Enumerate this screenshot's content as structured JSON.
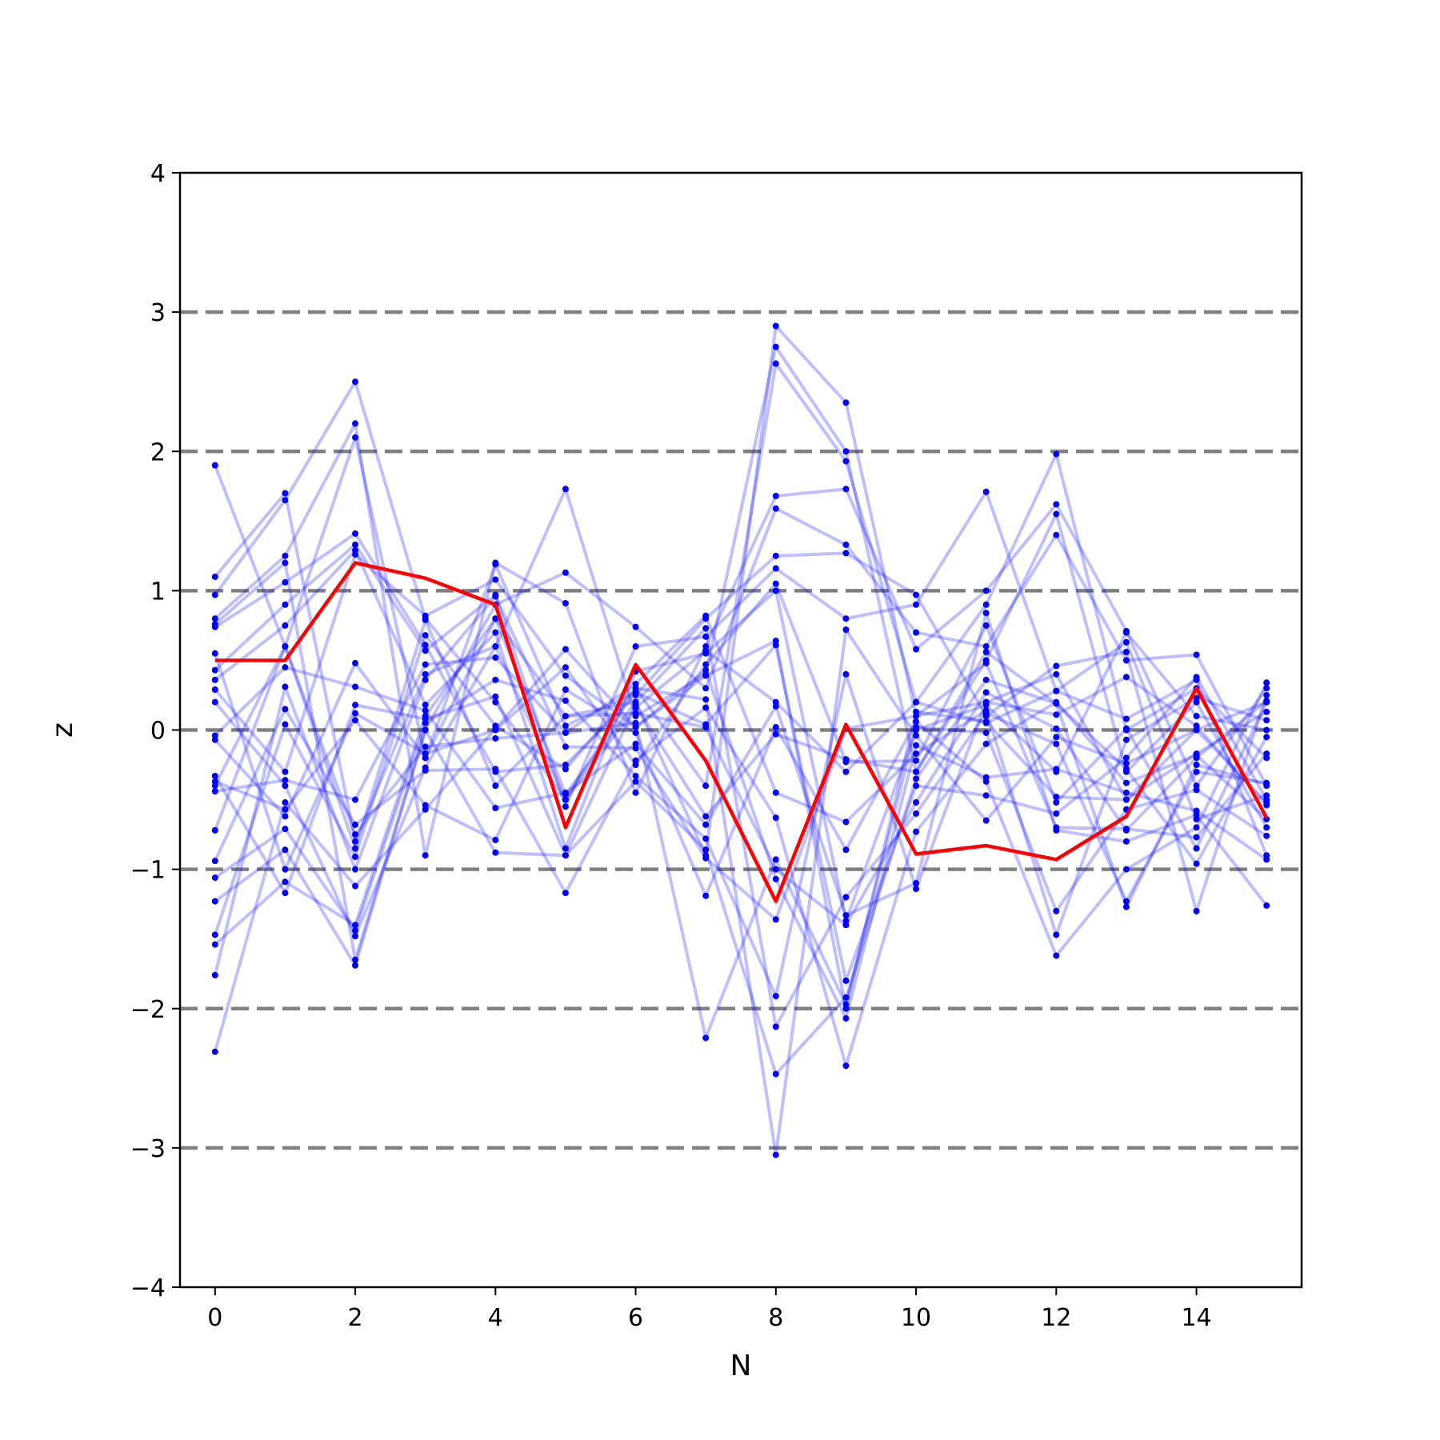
{
  "chart_data": {
    "type": "line",
    "xlabel": "N",
    "ylabel": "z",
    "xlim": [
      -0.5,
      15.5
    ],
    "ylim": [
      -4,
      4
    ],
    "x_ticks": [
      0,
      2,
      4,
      6,
      8,
      10,
      12,
      14
    ],
    "y_ticks": [
      -4,
      -3,
      -2,
      -1,
      0,
      1,
      2,
      3,
      4
    ],
    "y_tick_labels": [
      "−4",
      "−3",
      "−2",
      "−1",
      "0",
      "1",
      "2",
      "3",
      "4"
    ],
    "reference_lines": [
      -3,
      -2,
      -1,
      0,
      1,
      2,
      3
    ],
    "grid": false,
    "legend": "none",
    "colors": {
      "background_series": "#0000ff",
      "highlight_series": "#ff0000",
      "reference_line": "#808080"
    },
    "x": [
      0,
      1,
      2,
      3,
      4,
      5,
      6,
      7,
      8,
      9,
      10,
      11,
      12,
      13,
      14,
      15
    ],
    "highlight": [
      0.5,
      0.5,
      1.2,
      1.09,
      0.9,
      -0.7,
      0.47,
      -0.22,
      -1.23,
      0.04,
      -0.89,
      -0.83,
      -0.93,
      -0.62,
      0.3,
      -0.63
    ],
    "series": [
      {
        "values": [
          1.9,
          0.6,
          2.1,
          -0.2,
          0.8,
          0.1,
          0.2,
          -0.9,
          2.9,
          2.35,
          0.1,
          0.2,
          0.4,
          -0.5,
          0.0,
          0.2
        ]
      },
      {
        "values": [
          1.1,
          1.7,
          -0.8,
          0.4,
          0.6,
          1.73,
          0.1,
          0.4,
          2.75,
          2.0,
          -0.3,
          0.5,
          1.55,
          -0.3,
          0.2,
          -0.7
        ]
      },
      {
        "values": [
          0.97,
          1.65,
          2.5,
          0.8,
          0.2,
          -0.5,
          0.3,
          -0.4,
          2.63,
          1.93,
          0.2,
          0.9,
          1.98,
          0.0,
          0.3,
          -0.2
        ]
      },
      {
        "values": [
          0.8,
          1.25,
          2.2,
          -0.9,
          1.2,
          0.91,
          -0.45,
          0.6,
          1.68,
          1.73,
          0.58,
          1.0,
          1.62,
          0.71,
          -0.4,
          0.3
        ]
      },
      {
        "values": [
          0.76,
          1.2,
          -1.65,
          0.0,
          0.9,
          1.13,
          0.74,
          0.3,
          1.59,
          1.33,
          0.7,
          0.6,
          1.4,
          0.5,
          0.54,
          -0.4
        ]
      },
      {
        "values": [
          0.74,
          1.06,
          1.41,
          0.61,
          -0.3,
          -0.25,
          0.25,
          0.8,
          1.25,
          1.27,
          0.97,
          0.1,
          0.46,
          0.56,
          -1.3,
          0.25
        ]
      },
      {
        "values": [
          0.43,
          0.9,
          1.33,
          0.57,
          0.97,
          -0.55,
          0.6,
          0.67,
          1.16,
          0.8,
          0.9,
          1.71,
          0.28,
          0.08,
          0.36,
          -0.9
        ]
      },
      {
        "values": [
          0.36,
          0.75,
          1.29,
          0.18,
          0.7,
          -0.85,
          0.42,
          0.55,
          1.0,
          -1.37,
          0.0,
          0.18,
          -0.3,
          0.7,
          0.1,
          0.0
        ]
      },
      {
        "values": [
          0.29,
          -0.3,
          1.26,
          0.82,
          1.08,
          0.39,
          0.02,
          0.39,
          0.64,
          -2.0,
          0.13,
          0.06,
          -0.48,
          -0.5,
          -0.17,
          0.13
        ]
      },
      {
        "values": [
          -0.07,
          -0.62,
          0.48,
          -0.2,
          1.19,
          0.03,
          0.27,
          0.04,
          0.61,
          -1.8,
          -0.4,
          -0.47,
          -0.6,
          -0.2,
          0.38,
          -0.5
        ]
      },
      {
        "values": [
          -0.04,
          0.45,
          0.31,
          0.14,
          -0.56,
          -0.45,
          -0.1,
          -0.68,
          0.17,
          -1.33,
          -1.1,
          0.84,
          -0.72,
          -0.8,
          -0.61,
          -1.26
        ]
      },
      {
        "values": [
          -0.33,
          -1.17,
          0.18,
          0.08,
          0.24,
          -0.9,
          0.18,
          -0.62,
          -0.03,
          -0.21,
          -0.3,
          0.56,
          0.19,
          -1.27,
          -0.25,
          -0.39
        ]
      },
      {
        "values": [
          -0.37,
          -0.57,
          0.07,
          -0.54,
          -0.79,
          0.29,
          -0.02,
          -1.19,
          0.02,
          -0.86,
          0.06,
          -0.37,
          -1.62,
          -1.0,
          -0.7,
          0.34
        ]
      },
      {
        "values": [
          -0.44,
          -0.36,
          -0.5,
          0.47,
          0.52,
          -0.02,
          0.33,
          0.82,
          -0.45,
          -0.66,
          -0.17,
          0.14,
          -1.47,
          -0.07,
          0.23,
          0.07
        ]
      },
      {
        "values": [
          -0.72,
          0.6,
          -0.75,
          -0.12,
          -0.06,
          -0.02,
          0.05,
          -2.21,
          -0.93,
          -1.97,
          0.02,
          -0.02,
          -1.3,
          -0.57,
          -0.43,
          -0.76
        ]
      },
      {
        "values": [
          -0.94,
          0.15,
          -0.68,
          -0.29,
          -0.28,
          -1.17,
          -0.22,
          0.16,
          -0.63,
          -2.41,
          -0.73,
          -0.1,
          0.2,
          -0.38,
          -0.18,
          -0.64
        ]
      },
      {
        "values": [
          -1.06,
          -0.71,
          -1.44,
          0.05,
          0.36,
          0.21,
          -0.33,
          -0.78,
          -1.91,
          0.4,
          -1.14,
          0.2,
          0.11,
          0.38,
          0.03,
          -0.54
        ]
      },
      {
        "values": [
          -1.23,
          -0.86,
          -1.69,
          0.0,
          -0.88,
          -0.9,
          -0.37,
          -0.86,
          -2.47,
          -1.92,
          -0.35,
          0.36,
          0.19,
          -0.28,
          -0.96,
          -0.05
        ]
      },
      {
        "values": [
          -1.47,
          0.04,
          -0.91,
          0.68,
          0.03,
          -0.28,
          0.3,
          0.22,
          -3.05,
          0.72,
          -0.04,
          -0.65,
          -0.05,
          -0.24,
          0.0,
          -0.52
        ]
      },
      {
        "values": [
          -1.54,
          -1.09,
          -1.4,
          0.1,
          0.8,
          -0.46,
          0.2,
          0.73,
          -2.13,
          -1.2,
          -0.6,
          0.12,
          -0.1,
          -1.23,
          -0.3,
          -0.38
        ]
      },
      {
        "values": [
          -1.76,
          0.31,
          -1.0,
          0.36,
          0.96,
          -0.12,
          -0.13,
          -0.92,
          -1.36,
          0.01,
          0.1,
          0.48,
          -0.7,
          -0.71,
          -0.77,
          -0.17
        ]
      },
      {
        "values": [
          -2.31,
          -0.52,
          -1.12,
          -0.57,
          0.01,
          0.58,
          0.02,
          0.43,
          -1.07,
          -2.07,
          -0.11,
          -0.34,
          -0.28,
          -0.45,
          -0.58,
          -0.93
        ]
      },
      {
        "values": [
          0.2,
          -0.4,
          -1.48,
          -0.27,
          0.6,
          -0.5,
          0.16,
          0.57,
          0.2,
          -0.3,
          0.2,
          0.05,
          0.28,
          0.63,
          -0.64,
          -0.47
        ]
      },
      {
        "values": [
          -0.4,
          0.6,
          -0.85,
          0.79,
          -0.4,
          0.1,
          0.12,
          0.02,
          -1.0,
          -1.4,
          -0.52,
          0.27,
          0.01,
          -0.72,
          -0.2,
          0.21
        ]
      },
      {
        "values": [
          0.55,
          -1.0,
          0.12,
          -0.17,
          0.0,
          0.45,
          -0.25,
          0.47,
          1.05,
          -0.23,
          -0.22,
          0.75,
          -0.52,
          0.01,
          -0.85,
          0.2
        ]
      }
    ]
  }
}
